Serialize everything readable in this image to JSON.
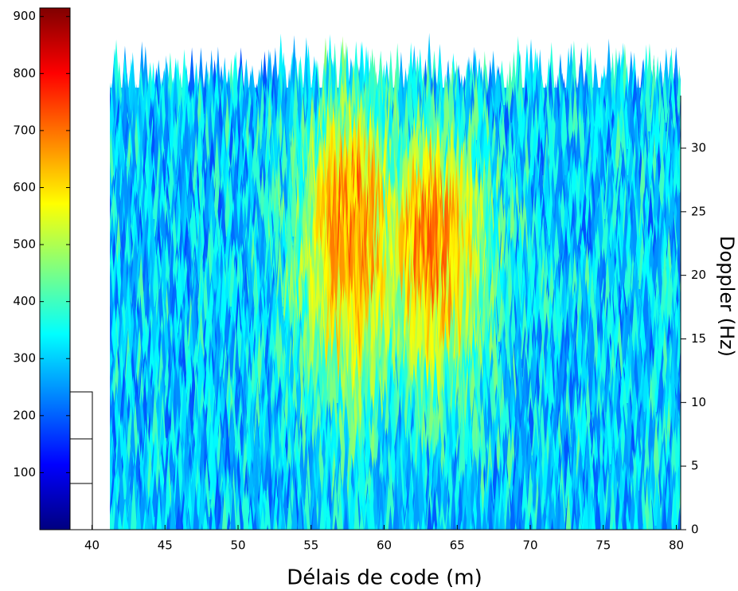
{
  "chart_data": {
    "type": "surface",
    "xlabel": "Délais de code (m)",
    "y2label": "Doppler (Hz)",
    "xlim": [
      38.5,
      80.3
    ],
    "xticks": [
      40,
      45,
      50,
      55,
      60,
      65,
      70,
      75,
      80
    ],
    "y2lim": [
      0,
      30
    ],
    "y2ticks": [
      0,
      5,
      10,
      15,
      20,
      25,
      30
    ],
    "colorbar": {
      "colormap": "jet",
      "clim": [
        0,
        915
      ],
      "ticks": [
        100,
        200,
        300,
        400,
        500,
        600,
        700,
        800,
        900
      ]
    }
  }
}
